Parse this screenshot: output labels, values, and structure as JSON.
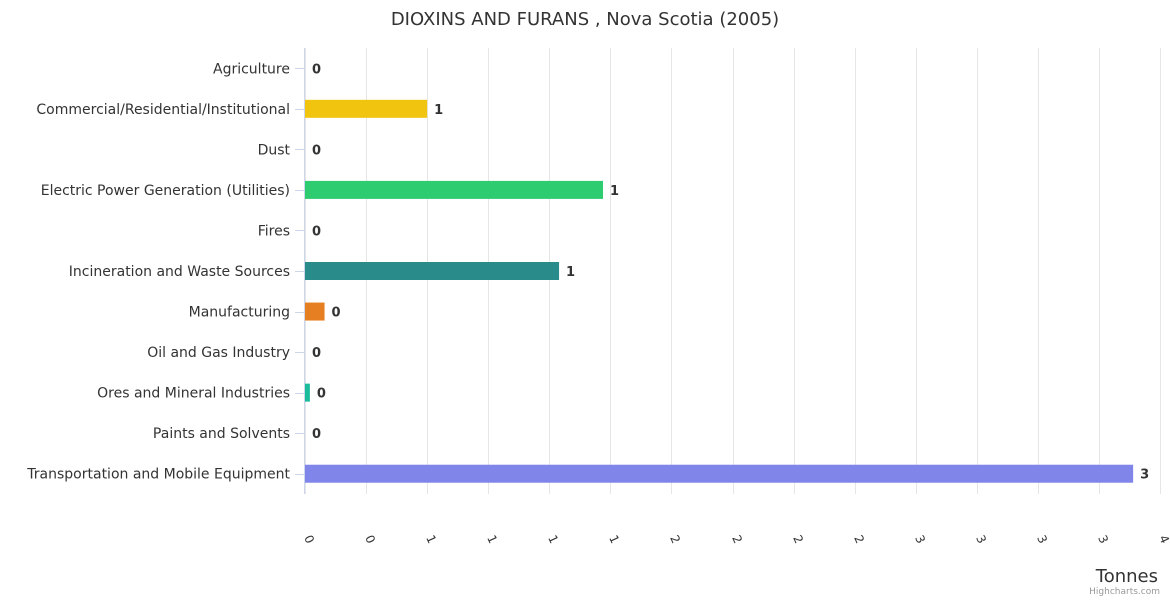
{
  "chart_data": {
    "type": "bar",
    "orientation": "horizontal",
    "title": "DIOXINS AND FURANS , Nova Scotia (2005)",
    "xlabel": "Tonnes",
    "categories": [
      "Agriculture",
      "Commercial/Residential/Institutional",
      "Dust",
      "Electric Power Generation (Utilities)",
      "Fires",
      "Incineration and Waste Sources",
      "Manufacturing",
      "Oil and Gas Industry",
      "Ores and Mineral Industries",
      "Paints and Solvents",
      "Transportation and Mobile Equipment"
    ],
    "values": [
      0,
      0.5,
      0,
      1.22,
      0,
      1.04,
      0.08,
      0,
      0.02,
      0,
      3.39
    ],
    "data_labels": [
      "0",
      "1",
      "0",
      "1",
      "0",
      "1",
      "0",
      "0",
      "0",
      "0",
      "3"
    ],
    "colors": [
      "#7cb5ec",
      "#f1c40f",
      "#3d3d3d",
      "#2ecc71",
      "#e74c3c",
      "#2a8b8b",
      "#e67e22",
      "#3d3d3d",
      "#1abc9c",
      "#3d3d3d",
      "#8085e9"
    ],
    "xlim": [
      0,
      3.5
    ],
    "tick_values": [
      0,
      0.25,
      0.5,
      0.75,
      1,
      1.25,
      1.5,
      1.75,
      2,
      2.25,
      2.5,
      2.75,
      3,
      3.25,
      3.5
    ],
    "tick_labels": [
      "0",
      "0",
      "1",
      "1",
      "1",
      "1",
      "2",
      "2",
      "2",
      "2",
      "3",
      "3",
      "3",
      "3",
      "4"
    ],
    "grid": true,
    "legend": "none",
    "credits": "Highcharts.com"
  }
}
